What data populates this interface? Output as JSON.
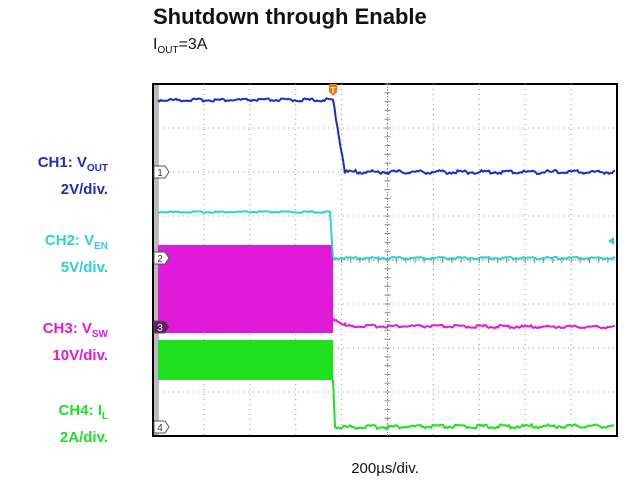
{
  "header": {
    "title": "Shutdown through Enable",
    "subtitle": {
      "main": "I",
      "sub": "OUT",
      "rest": "=3A"
    }
  },
  "channels": [
    {
      "name": "CH1: V",
      "sub": "OUT",
      "scale": "2V/div.",
      "marker": "1",
      "color": "#1a2fc0"
    },
    {
      "name": "CH2: V",
      "sub": "EN",
      "scale": "5V/div.",
      "marker": "2",
      "color": "#2ccfd6"
    },
    {
      "name": "CH3: V",
      "sub": "SW",
      "scale": "10V/div.",
      "marker": "3",
      "color": "#e01ad8"
    },
    {
      "name": "CH4: I",
      "sub": "L",
      "scale": "2A/div.",
      "marker": "4",
      "color": "#1ee01e"
    }
  ],
  "trigger": "T",
  "timebase": "200µs/div."
}
